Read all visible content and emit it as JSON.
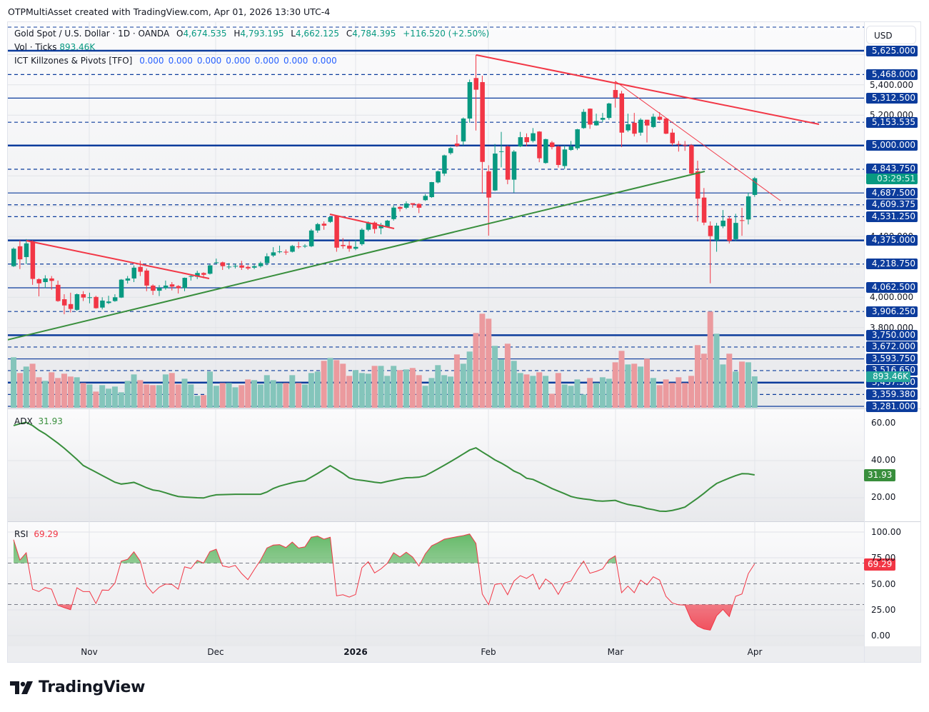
{
  "attribution": "OTPMultiAsset created with TradingView.com, Apr 01, 2026 13:30 UTC-4",
  "legend": {
    "symbol": "Gold Spot / U.S. Dollar · 1D · OANDA",
    "o_label": "O",
    "o_value": "4,674.535",
    "h_label": "H",
    "h_value": "4,793.195",
    "l_label": "L",
    "l_value": "4,662.125",
    "c_label": "C",
    "c_value": "4,784.395",
    "change": "+116.520 (+2.50%)",
    "vol_label": "Vol · Ticks",
    "vol_value": "893.46K",
    "indicator": "ICT Killzones & Pivots [TFO]",
    "indicator_values": [
      "0.000",
      "0.000",
      "0.000",
      "0.000",
      "0.000",
      "0.000",
      "0.000"
    ]
  },
  "price_axis": {
    "currency": "USD",
    "level_labels": [
      "5,625.000",
      "5,468.000",
      "5,312.500",
      "5,153.535",
      "5,000.000",
      "4,843.750",
      "4,687.500",
      "4,609.375",
      "4,531.250",
      "4,375.000",
      "4,218.750",
      "4,062.500",
      "3,906.250",
      "3,750.000",
      "3,672.000",
      "3,593.750",
      "3,516.650",
      "3,437.500",
      "3,359.380",
      "3,281.000"
    ],
    "grid_labels": [
      "5,400.000",
      "5,200.000",
      "4,400.000",
      "4,000.000",
      "3,800.000"
    ],
    "countdown": "03:29:51",
    "volume_tag": "893.46K"
  },
  "adx": {
    "label": "ADX",
    "value": "31.93",
    "axis": [
      "60.00",
      "40.00",
      "20.00"
    ]
  },
  "rsi": {
    "label": "RSI",
    "value": "69.29",
    "axis": [
      "100.00",
      "75.00",
      "50.00",
      "25.00",
      "0.00"
    ]
  },
  "time_axis": [
    "Nov",
    "Dec",
    "2026",
    "Feb",
    "Mar",
    "Apr"
  ],
  "logo": "TradingView",
  "colors": {
    "up": "#089981",
    "down": "#f23645",
    "level": "#0c3c9c",
    "adx": "#388e3c",
    "rsi": "#f23645"
  },
  "chart_data": {
    "type": "candlestick",
    "title": "Gold Spot / U.S. Dollar · 1D · OANDA",
    "ylim": [
      3281,
      5625
    ],
    "levels": [
      {
        "price": 5625,
        "style": "solid-thick"
      },
      {
        "price": 5468,
        "style": "dashed"
      },
      {
        "price": 5312.5,
        "style": "solid"
      },
      {
        "price": 5153.535,
        "style": "dashed"
      },
      {
        "price": 5000,
        "style": "solid-thick"
      },
      {
        "price": 4843.75,
        "style": "dashed"
      },
      {
        "price": 4687.5,
        "style": "solid"
      },
      {
        "price": 4609.375,
        "style": "dashed"
      },
      {
        "price": 4531.25,
        "style": "dashed"
      },
      {
        "price": 4375,
        "style": "solid-thick"
      },
      {
        "price": 4218.75,
        "style": "dashed"
      },
      {
        "price": 4062.5,
        "style": "solid"
      },
      {
        "price": 3906.25,
        "style": "dashed"
      },
      {
        "price": 3750,
        "style": "solid-thick"
      },
      {
        "price": 3672,
        "style": "dashed"
      },
      {
        "price": 3593.75,
        "style": "solid"
      },
      {
        "price": 3516.65,
        "style": "dashed"
      },
      {
        "price": 3437.5,
        "style": "solid-thick"
      },
      {
        "price": 3359.38,
        "style": "dashed"
      },
      {
        "price": 3281,
        "style": "solid"
      }
    ],
    "ohlc": [
      [
        4205,
        4328,
        4200,
        4320
      ],
      [
        4336,
        4375,
        4186,
        4250
      ],
      [
        4265,
        4383,
        4218,
        4355
      ],
      [
        4367,
        4375,
        4082,
        4121
      ],
      [
        4119,
        4125,
        4006,
        4092
      ],
      [
        4100,
        4145,
        4060,
        4124
      ],
      [
        4124,
        4140,
        4050,
        4108
      ],
      [
        4082,
        4110,
        3970,
        3975
      ],
      [
        3987,
        4020,
        3888,
        3946
      ],
      [
        3955,
        4030,
        3900,
        3923
      ],
      [
        3917,
        4025,
        3910,
        4020
      ],
      [
        4020,
        4040,
        3975,
        3998
      ],
      [
        3995,
        4030,
        3960,
        4000
      ],
      [
        4002,
        4010,
        3925,
        3928
      ],
      [
        3932,
        4000,
        3920,
        3978
      ],
      [
        3962,
        4010,
        3955,
        3972
      ],
      [
        3975,
        4020,
        3970,
        4000
      ],
      [
        3998,
        4120,
        3995,
        4116
      ],
      [
        4110,
        4140,
        4090,
        4124
      ],
      [
        4124,
        4210,
        4100,
        4195
      ],
      [
        4200,
        4240,
        4140,
        4168
      ],
      [
        4176,
        4190,
        4040,
        4077
      ],
      [
        4077,
        4085,
        4015,
        4043
      ],
      [
        4043,
        4080,
        4008,
        4062
      ],
      [
        4060,
        4110,
        4050,
        4077
      ],
      [
        4085,
        4100,
        4045,
        4070
      ],
      [
        4074,
        4080,
        4025,
        4060
      ],
      [
        4060,
        4130,
        4040,
        4128
      ],
      [
        4135,
        4150,
        4110,
        4140
      ],
      [
        4135,
        4175,
        4120,
        4160
      ],
      [
        4160,
        4165,
        4125,
        4148
      ],
      [
        4155,
        4215,
        4150,
        4210
      ],
      [
        4225,
        4255,
        4220,
        4230
      ],
      [
        4230,
        4235,
        4180,
        4205
      ],
      [
        4200,
        4225,
        4185,
        4202
      ],
      [
        4205,
        4220,
        4190,
        4207
      ],
      [
        4210,
        4240,
        4180,
        4195
      ],
      [
        4200,
        4210,
        4180,
        4190
      ],
      [
        4195,
        4215,
        4185,
        4205
      ],
      [
        4205,
        4235,
        4195,
        4225
      ],
      [
        4225,
        4290,
        4210,
        4270
      ],
      [
        4275,
        4330,
        4265,
        4296
      ],
      [
        4300,
        4340,
        4290,
        4302
      ],
      [
        4300,
        4315,
        4280,
        4295
      ],
      [
        4300,
        4345,
        4295,
        4338
      ],
      [
        4335,
        4365,
        4320,
        4332
      ],
      [
        4337,
        4350,
        4325,
        4339
      ],
      [
        4336,
        4450,
        4330,
        4440
      ],
      [
        4440,
        4490,
        4425,
        4482
      ],
      [
        4485,
        4500,
        4445,
        4472
      ],
      [
        4497,
        4535,
        4490,
        4528
      ],
      [
        4535,
        4540,
        4300,
        4327
      ],
      [
        4345,
        4390,
        4320,
        4337
      ],
      [
        4340,
        4370,
        4300,
        4320
      ],
      [
        4320,
        4380,
        4310,
        4332
      ],
      [
        4350,
        4455,
        4340,
        4445
      ],
      [
        4445,
        4500,
        4435,
        4492
      ],
      [
        4492,
        4500,
        4420,
        4450
      ],
      [
        4455,
        4490,
        4415,
        4477
      ],
      [
        4465,
        4510,
        4460,
        4505
      ],
      [
        4515,
        4605,
        4505,
        4591
      ],
      [
        4595,
        4600,
        4565,
        4583
      ],
      [
        4590,
        4632,
        4580,
        4618
      ],
      [
        4620,
        4620,
        4590,
        4610
      ],
      [
        4615,
        4620,
        4555,
        4590
      ],
      [
        4640,
        4680,
        4635,
        4668
      ],
      [
        4660,
        4760,
        4655,
        4759
      ],
      [
        4757,
        4835,
        4750,
        4830
      ],
      [
        4815,
        4940,
        4800,
        4935
      ],
      [
        4950,
        4990,
        4940,
        4983
      ],
      [
        5013,
        5070,
        4990,
        4997
      ],
      [
        5027,
        5185,
        5000,
        5178
      ],
      [
        5178,
        5435,
        5150,
        5418
      ],
      [
        5445,
        5598,
        5099,
        5368
      ],
      [
        5418,
        5460,
        4684,
        4892
      ],
      [
        4830,
        4870,
        4406,
        4657
      ],
      [
        4704,
        5010,
        4700,
        4947
      ],
      [
        4960,
        5090,
        4857,
        4962
      ],
      [
        4994,
        5000,
        4745,
        4775
      ],
      [
        4775,
        4970,
        4690,
        4960
      ],
      [
        4994,
        5090,
        4990,
        5055
      ],
      [
        5055,
        5080,
        4995,
        5022
      ],
      [
        5030,
        5115,
        5020,
        5081
      ],
      [
        5092,
        5095,
        4890,
        4916
      ],
      [
        4885,
        5045,
        4880,
        5042
      ],
      [
        5020,
        5030,
        4975,
        4990
      ],
      [
        4994,
        5000,
        4855,
        4872
      ],
      [
        4865,
        5000,
        4845,
        4974
      ],
      [
        4971,
        5030,
        4965,
        4994
      ],
      [
        4982,
        5110,
        4970,
        5107
      ],
      [
        5115,
        5240,
        5110,
        5222
      ],
      [
        5243,
        5245,
        5110,
        5138
      ],
      [
        5133,
        5210,
        5130,
        5162
      ],
      [
        5170,
        5215,
        5155,
        5182
      ],
      [
        5182,
        5282,
        5170,
        5277
      ],
      [
        5366,
        5425,
        5250,
        5316
      ],
      [
        5343,
        5360,
        4990,
        5085
      ],
      [
        5100,
        5210,
        5090,
        5140
      ],
      [
        5150,
        5215,
        5060,
        5078
      ],
      [
        5085,
        5180,
        5065,
        5170
      ],
      [
        5170,
        5170,
        5020,
        5132
      ],
      [
        5122,
        5210,
        5115,
        5190
      ],
      [
        5190,
        5220,
        5165,
        5170
      ],
      [
        5178,
        5180,
        5075,
        5078
      ],
      [
        5085,
        5110,
        5000,
        5015
      ],
      [
        5010,
        5030,
        4960,
        5005
      ],
      [
        5005,
        5030,
        4965,
        5000
      ],
      [
        5002,
        5010,
        4810,
        4815
      ],
      [
        4830,
        4900,
        4500,
        4650
      ],
      [
        4657,
        4720,
        4475,
        4492
      ],
      [
        4472,
        4500,
        4092,
        4403
      ],
      [
        4375,
        4490,
        4300,
        4472
      ],
      [
        4468,
        4575,
        4455,
        4505
      ],
      [
        4519,
        4535,
        4355,
        4372
      ],
      [
        4383,
        4550,
        4370,
        4490
      ],
      [
        4508,
        4590,
        4405,
        4503
      ],
      [
        4513,
        4690,
        4480,
        4665
      ],
      [
        4674.535,
        4793.195,
        4662.125,
        4784.395
      ]
    ],
    "volume_k": [
      1435,
      988,
      1171,
      1252,
      867,
      765,
      1009,
      846,
      968,
      887,
      867,
      704,
      663,
      460,
      643,
      542,
      603,
      440,
      765,
      948,
      785,
      663,
      643,
      643,
      948,
      988,
      663,
      826,
      663,
      339,
      359,
      1029,
      623,
      704,
      704,
      582,
      643,
      806,
      785,
      663,
      927,
      785,
      704,
      704,
      927,
      704,
      663,
      988,
      1029,
      1334,
      1415,
      1354,
      1252,
      907,
      1070,
      988,
      968,
      1191,
      1191,
      907,
      1191,
      1070,
      1090,
      1131,
      927,
      623,
      846,
      1212,
      927,
      887,
      1516,
      1252,
      1598,
      2126,
      2674,
      2532,
      1760,
      1374,
      1821,
      1334,
      988,
      948,
      907,
      1009,
      907,
      399,
      988,
      663,
      623,
      806,
      379,
      846,
      704,
      867,
      826,
      1293,
      1618,
      1232,
      1252,
      1171,
      1395,
      846,
      643,
      806,
      704,
      867,
      704,
      907,
      1781,
      1537,
      2735,
      2105,
      1232,
      1537,
      1029,
      1313,
      1293,
      893.46
    ],
    "adx": [
      58.5,
      59.5,
      60.2,
      58.5,
      56,
      54,
      51.5,
      49,
      46.3,
      43.3,
      40.3,
      37,
      35.2,
      33.4,
      31.6,
      29.8,
      28,
      27,
      27.4,
      27.9,
      26.5,
      25,
      23.8,
      23.3,
      22.3,
      21.2,
      20.3,
      20,
      19.8,
      19.6,
      19.5,
      20.5,
      21.2,
      21.3,
      21.4,
      21.5,
      21.5,
      21.5,
      21.5,
      21.5,
      22.7,
      24.6,
      25.9,
      26.8,
      27.7,
      28.4,
      28.8,
      30.7,
      32.7,
      34.8,
      36.9,
      34.9,
      32.8,
      30.3,
      29.4,
      29,
      28.5,
      28,
      27.6,
      28.4,
      29.1,
      29.8,
      30.4,
      30.5,
      30.7,
      31.5,
      33.3,
      35.2,
      37.1,
      39.1,
      41.1,
      43.2,
      45.3,
      46.5,
      44.3,
      42.2,
      40,
      38.3,
      36.3,
      34,
      32.5,
      30.1,
      29.5,
      27.9,
      26.3,
      24.6,
      23.2,
      21.8,
      20.3,
      19.5,
      19,
      18.6,
      18,
      17.8,
      18,
      18.2,
      17,
      16,
      15.4,
      14.8,
      13.8,
      13.2,
      12.4,
      12.3,
      12.8,
      13.6,
      14.6,
      17,
      19.4,
      22,
      24.8,
      27.3,
      28.8,
      30.2,
      31.5,
      32.6,
      32.5,
      31.93
    ],
    "rsi": [
      92.6,
      72.9,
      80,
      44.8,
      42.5,
      46.4,
      44.8,
      29.2,
      27,
      25,
      46.2,
      42.5,
      42.5,
      31,
      44,
      43.7,
      50.6,
      71.9,
      73.6,
      80.9,
      71.9,
      48.3,
      40.9,
      46.7,
      49.7,
      49.4,
      44.8,
      66.4,
      64.8,
      72.6,
      70,
      81.1,
      83.4,
      67.3,
      66,
      67.8,
      60,
      54,
      63.7,
      72.9,
      84.6,
      87.4,
      87.8,
      85,
      90.3,
      84.6,
      85.7,
      95,
      96.1,
      93.1,
      95,
      38.4,
      39.5,
      37.2,
      39.7,
      65.5,
      71.3,
      60.5,
      64.4,
      69.7,
      80,
      75.9,
      80.5,
      75.9,
      67.1,
      78.9,
      86.7,
      89.7,
      93.1,
      94.3,
      95.5,
      96.6,
      98.1,
      89,
      40.2,
      29.9,
      49.4,
      50.3,
      39.5,
      52.6,
      57.9,
      55.2,
      59.3,
      44.8,
      54.7,
      50.1,
      39.8,
      50.8,
      52.6,
      63.2,
      71.9,
      60.2,
      62,
      64.4,
      73.3,
      77,
      41.4,
      47.8,
      41.4,
      53.6,
      49,
      56.8,
      53.6,
      37.9,
      31.5,
      29.7,
      29.5,
      15,
      9.2,
      6.4,
      5.3,
      19.1,
      25.3,
      18.4,
      37.9,
      40.2,
      59.8,
      69.29
    ],
    "rsi_bands": [
      70,
      50,
      30
    ],
    "adx_ylim": [
      10,
      62
    ],
    "rsi_ylim": [
      0,
      100
    ],
    "xlabels": [
      "Nov",
      "Dec",
      "2026",
      "Feb",
      "Mar",
      "Apr"
    ],
    "grid": true
  }
}
